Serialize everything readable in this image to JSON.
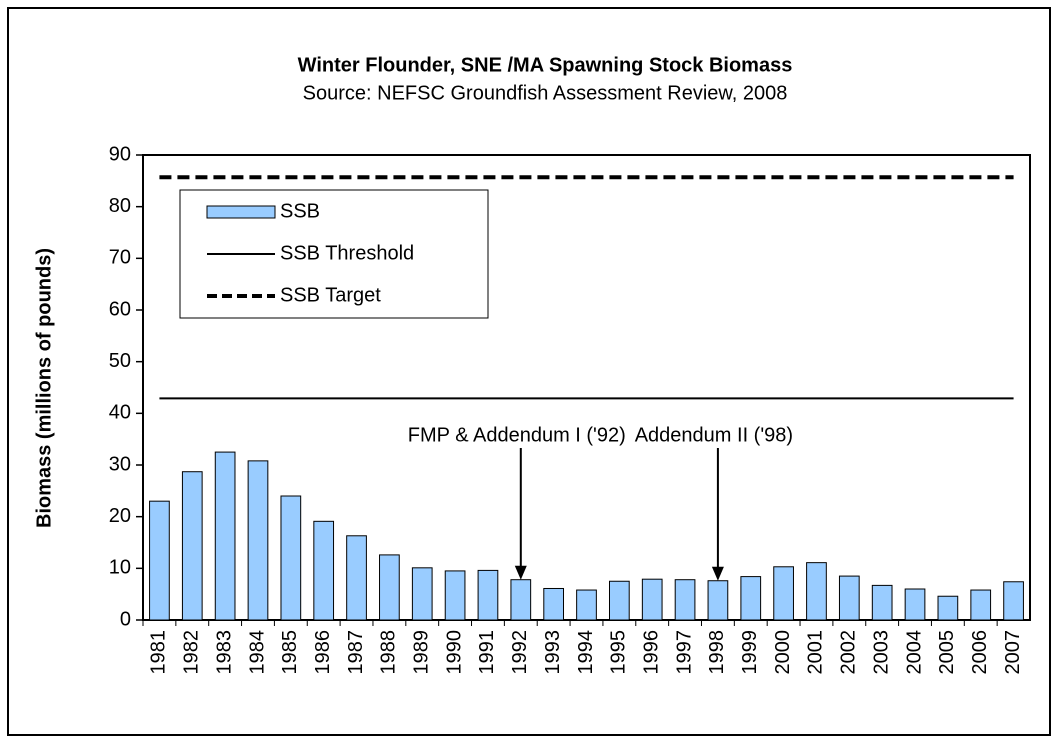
{
  "chart_data": {
    "type": "bar",
    "title": "Winter Flounder, SNE /MA Spawning Stock Biomass",
    "subtitle": "Source: NEFSC Groundfish Assessment Review, 2008",
    "y_label": "Biomass (millions of pounds)",
    "categories": [
      "1981",
      "1982",
      "1983",
      "1984",
      "1985",
      "1986",
      "1987",
      "1988",
      "1989",
      "1990",
      "1991",
      "1992",
      "1993",
      "1994",
      "1995",
      "1996",
      "1997",
      "1998",
      "1999",
      "2000",
      "2001",
      "2002",
      "2003",
      "2004",
      "2005",
      "2006",
      "2007"
    ],
    "series": [
      {
        "name": "SSB",
        "color": "#99ccff",
        "values": [
          23.0,
          28.7,
          32.5,
          30.8,
          24.0,
          19.1,
          16.3,
          12.6,
          10.1,
          9.5,
          9.6,
          7.8,
          6.1,
          5.8,
          7.5,
          7.9,
          7.8,
          7.6,
          8.4,
          10.3,
          11.1,
          8.5,
          6.7,
          6.0,
          4.6,
          5.8,
          7.4
        ]
      }
    ],
    "reference_lines": [
      {
        "name": "SSB Threshold",
        "value": 42.9,
        "dashed": false,
        "color": "#000000"
      },
      {
        "name": "SSB Target",
        "value": 85.7,
        "dashed": true,
        "color": "#000000"
      }
    ],
    "annotations": [
      {
        "text": "FMP & Addendum I ('92)",
        "category": "1992"
      },
      {
        "text": "Addendum II ('98)",
        "category": "1998"
      }
    ],
    "ylim": [
      0,
      90
    ],
    "yticks": [
      0,
      10,
      20,
      30,
      40,
      50,
      60,
      70,
      80,
      90
    ],
    "legend": "upper left"
  }
}
